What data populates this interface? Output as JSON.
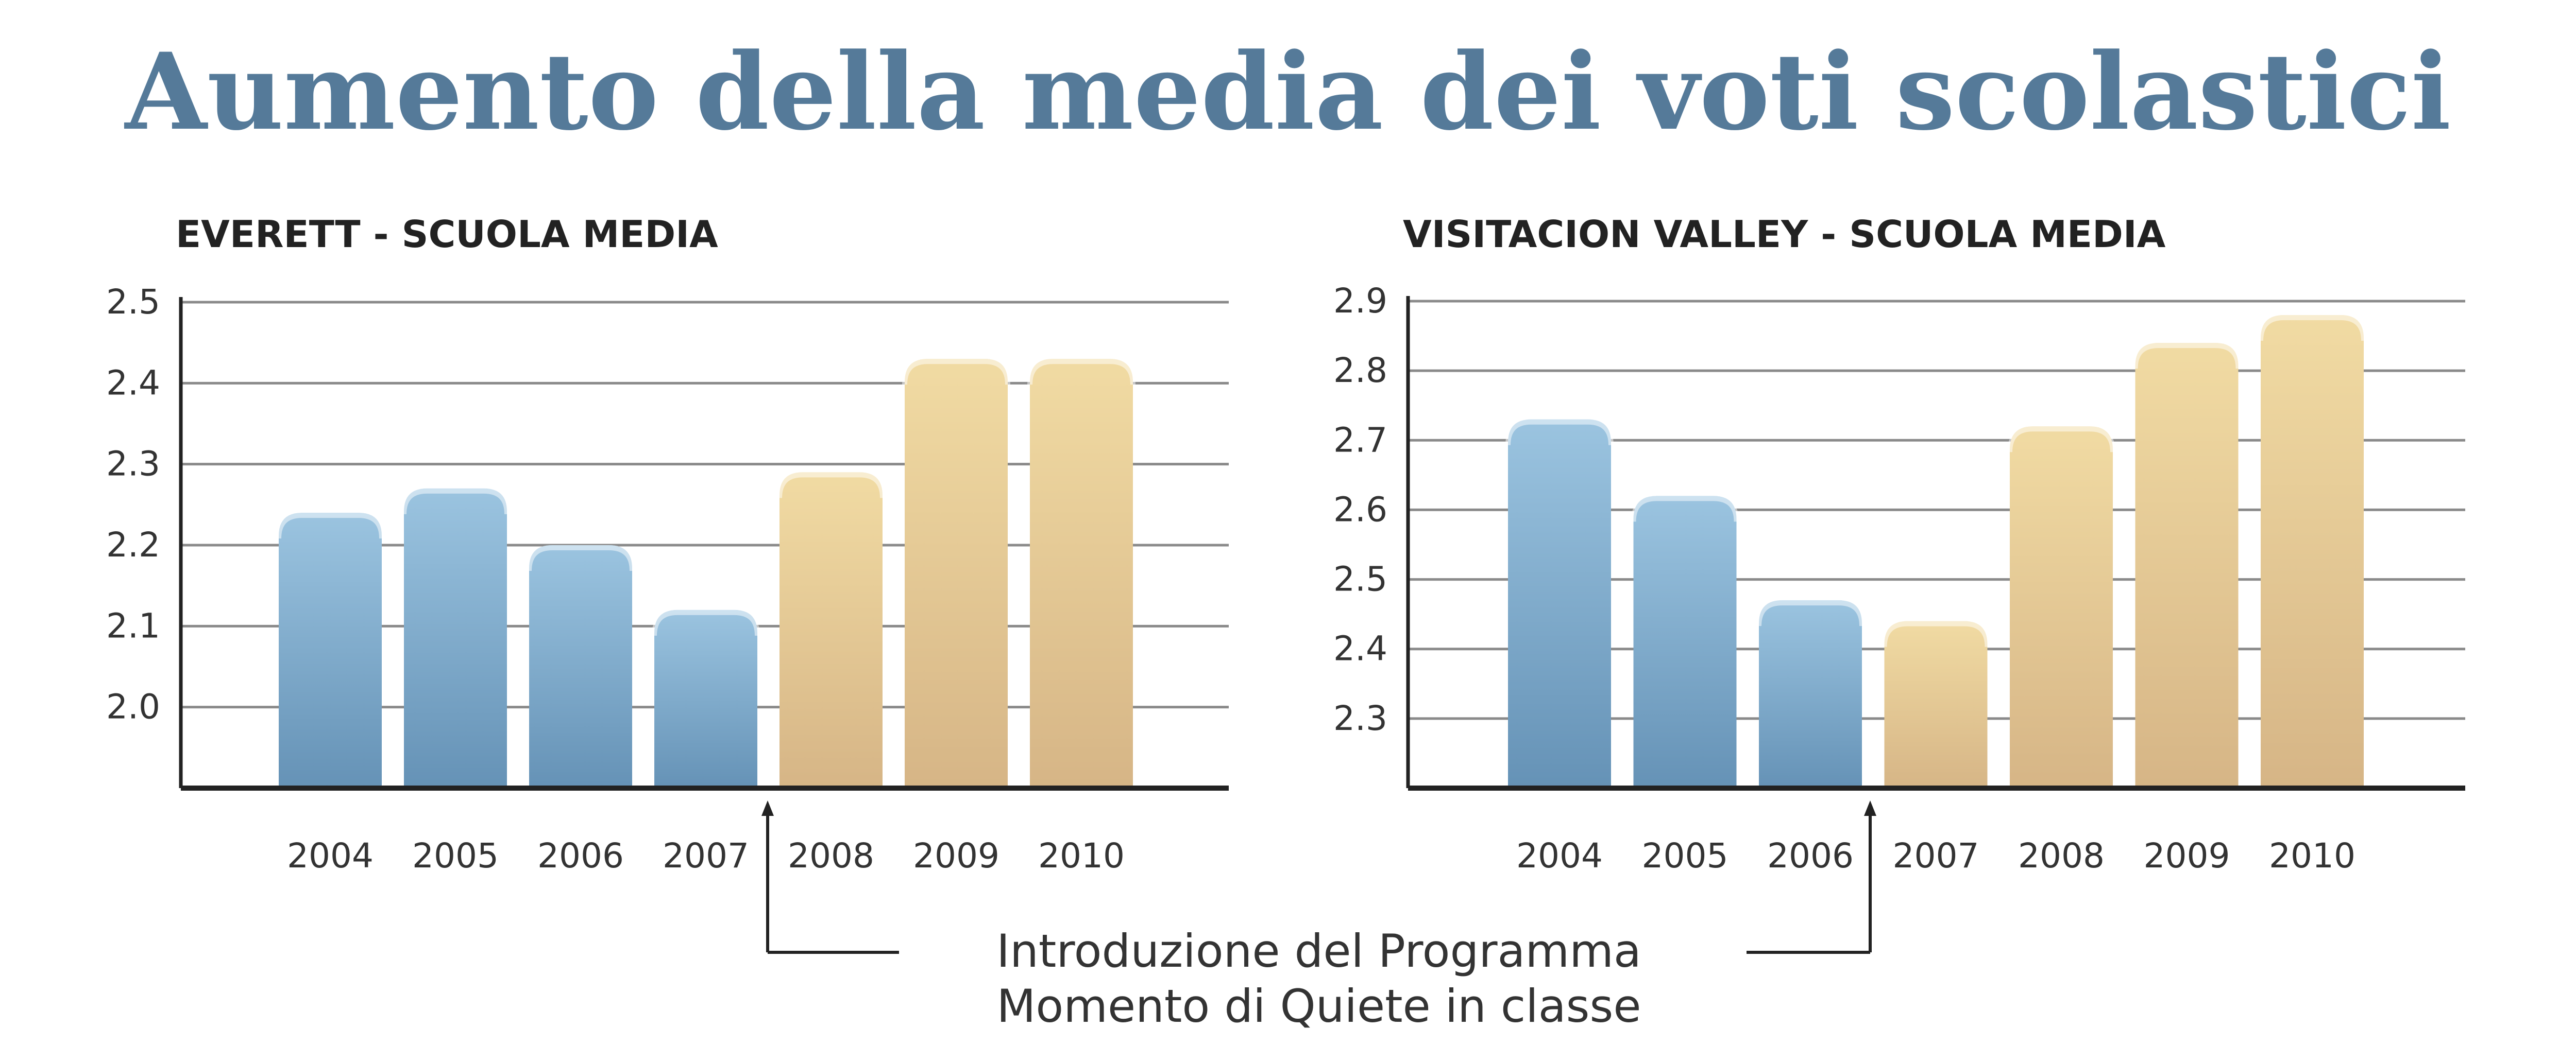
{
  "title": "Aumento della media dei voti scolastici",
  "annotation": {
    "line1": "Introduzione del Programma",
    "line2": "Momento di Quiete in classe"
  },
  "colors": {
    "title": "#557a99",
    "before_top": "#9bc4e0",
    "before_bottom": "#6592b6",
    "after_top": "#f1dba3",
    "after_bottom": "#d6b586"
  },
  "chart_data": [
    {
      "type": "bar",
      "title": "EVERETT - SCUOLA MEDIA",
      "categories": [
        "2004",
        "2005",
        "2006",
        "2007",
        "2008",
        "2009",
        "2010"
      ],
      "values": [
        2.24,
        2.27,
        2.2,
        2.12,
        2.29,
        2.43,
        2.43
      ],
      "program_start_index": 4,
      "ylim": [
        1.9,
        2.5
      ],
      "yticks": [
        "2.0",
        "2.1",
        "2.2",
        "2.3",
        "2.4",
        "2.5"
      ],
      "grid": true
    },
    {
      "type": "bar",
      "title": "VISITACION VALLEY - SCUOLA MEDIA",
      "categories": [
        "2004",
        "2005",
        "2006",
        "2007",
        "2008",
        "2009",
        "2010"
      ],
      "values": [
        2.73,
        2.62,
        2.47,
        2.44,
        2.72,
        2.84,
        2.88
      ],
      "program_start_index": 3,
      "ylim": [
        2.2,
        2.9
      ],
      "yticks": [
        "2.3",
        "2.4",
        "2.5",
        "2.6",
        "2.7",
        "2.8",
        "2.9"
      ],
      "grid": true
    }
  ]
}
